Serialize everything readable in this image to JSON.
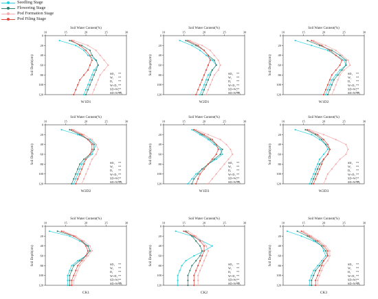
{
  "legend": {
    "items": [
      {
        "label": "Seedling Stage",
        "color": "#1fd0e0",
        "marker": "circle"
      },
      {
        "label": "Flowering Stage",
        "color": "#2e7d6e",
        "marker": "circle"
      },
      {
        "label": "Pod Formation Stage",
        "color": "#f4a9aa",
        "marker": "circle"
      },
      {
        "label": "Pod Filing Stage",
        "color": "#e0483e",
        "marker": "circle"
      }
    ]
  },
  "axis_text": {
    "x_title": "Soil Water Content(%)",
    "y_title": "Soil Depth(cm)",
    "x_ticks": [
      "10",
      "15",
      "20",
      "25",
      "30"
    ],
    "y_ticks": [
      "0",
      "20",
      "40",
      "60",
      "80",
      "100",
      "120"
    ]
  },
  "stats": [
    {
      "label": "SD₁",
      "sig": "**"
    },
    {
      "label": "W₁",
      "sig": "**"
    },
    {
      "label": "D₁",
      "sig": "**"
    },
    {
      "label": "W×D₁",
      "sig": "**"
    },
    {
      "label": "SD×W₁",
      "sig": "**"
    },
    {
      "label": "SD×W×D₁",
      "sig": "**"
    }
  ],
  "chart_data": [
    {
      "type": "line",
      "title": "W1D1",
      "xlabel": "Soil Water Content(%)",
      "ylabel": "Soil Depth(cm)",
      "xlim": [
        10,
        30
      ],
      "ylim": [
        0,
        120
      ],
      "y_reversed": true,
      "x_axis_position": "top",
      "grid": false,
      "y": [
        10,
        20,
        30,
        40,
        50,
        60,
        70,
        80,
        90,
        100,
        110,
        120
      ],
      "series": [
        {
          "name": "Seedling Stage",
          "values": [
            13.5,
            17.5,
            19.5,
            20.5,
            22.5,
            23,
            22,
            21.5,
            21,
            20.5,
            20,
            19.5
          ]
        },
        {
          "name": "Flowering Stage",
          "values": [
            16,
            19,
            21,
            21.5,
            22.5,
            23,
            22.5,
            22,
            21.5,
            21,
            20.5,
            20
          ]
        },
        {
          "name": "Pod Formation Stage",
          "values": [
            17,
            20.5,
            22.5,
            23.5,
            24.5,
            25.5,
            24.5,
            23.5,
            23,
            22.5,
            22,
            21.5
          ]
        },
        {
          "name": "Pod Filing Stage",
          "values": [
            16.5,
            18.5,
            20,
            21,
            21.5,
            21,
            20.5,
            19.5,
            18.5,
            18,
            17.5,
            17
          ]
        }
      ]
    },
    {
      "type": "line",
      "title": "W2D1",
      "xlabel": "Soil Water Content(%)",
      "ylabel": "Soil Depth(cm)",
      "xlim": [
        10,
        30
      ],
      "ylim": [
        0,
        120
      ],
      "y_reversed": true,
      "x_axis_position": "top",
      "grid": false,
      "y": [
        10,
        20,
        30,
        40,
        50,
        60,
        70,
        80,
        90,
        100,
        110,
        120
      ],
      "series": [
        {
          "name": "Seedling Stage",
          "values": [
            14,
            17,
            19,
            20.5,
            22,
            23,
            22,
            21,
            20.5,
            20,
            19.5,
            19
          ]
        },
        {
          "name": "Flowering Stage",
          "values": [
            15.5,
            18,
            20,
            21,
            22.5,
            23,
            22,
            21.5,
            21,
            20.5,
            20,
            19.5
          ]
        },
        {
          "name": "Pod Formation Stage",
          "values": [
            16.5,
            19.5,
            21.5,
            22.5,
            23.5,
            24,
            23.5,
            22.5,
            22,
            21.5,
            21,
            20.5
          ]
        },
        {
          "name": "Pod Filing Stage",
          "values": [
            16,
            18.5,
            20,
            21,
            21.5,
            21,
            20.5,
            20,
            19.5,
            19,
            18.5,
            18
          ]
        }
      ]
    },
    {
      "type": "line",
      "title": "W1D2",
      "xlabel": "Soil Water Content(%)",
      "ylabel": "Soil Depth(cm)",
      "xlim": [
        10,
        30
      ],
      "ylim": [
        0,
        120
      ],
      "y_reversed": true,
      "x_axis_position": "top",
      "grid": false,
      "y": [
        10,
        20,
        30,
        40,
        50,
        60,
        70,
        80,
        90,
        100,
        110,
        120
      ],
      "series": [
        {
          "name": "Seedling Stage",
          "values": [
            13,
            17,
            21,
            23,
            25,
            25.5,
            24,
            23,
            22,
            21.5,
            21,
            20.5
          ]
        },
        {
          "name": "Flowering Stage",
          "values": [
            16,
            19,
            22,
            24,
            25.5,
            25.5,
            24.5,
            23.5,
            22.5,
            22,
            21.5,
            21
          ]
        },
        {
          "name": "Pod Formation Stage",
          "values": [
            17.5,
            20.5,
            23,
            24.5,
            26,
            26.5,
            25,
            24,
            23.5,
            23,
            22.5,
            22
          ]
        },
        {
          "name": "Pod Filing Stage",
          "values": [
            17,
            19.5,
            21.5,
            23,
            24.5,
            24,
            23,
            22,
            21.5,
            21,
            20.5,
            20
          ]
        }
      ]
    },
    {
      "type": "line",
      "title": "W2D2",
      "xlabel": "Soil Water Content(%)",
      "ylabel": "Soil Depth(cm)",
      "xlim": [
        10,
        30
      ],
      "ylim": [
        0,
        120
      ],
      "y_reversed": true,
      "x_axis_position": "top",
      "grid": false,
      "y": [
        10,
        20,
        30,
        40,
        50,
        60,
        70,
        80,
        90,
        100,
        110,
        120
      ],
      "series": [
        {
          "name": "Seedling Stage",
          "values": [
            14,
            18,
            21,
            22.5,
            22,
            21.5,
            20,
            19,
            18.5,
            18,
            17.5,
            17
          ]
        },
        {
          "name": "Flowering Stage",
          "values": [
            16,
            18.5,
            20.5,
            22,
            22,
            21,
            19.5,
            18.5,
            18,
            17.5,
            17,
            16.5
          ]
        },
        {
          "name": "Pod Formation Stage",
          "values": [
            17,
            19.5,
            21.5,
            22.5,
            23,
            22.5,
            21.5,
            21,
            20.5,
            20,
            19.5,
            19
          ]
        },
        {
          "name": "Pod Filing Stage",
          "values": [
            16.5,
            19,
            20.5,
            21.5,
            21.5,
            21,
            20,
            19.5,
            19,
            18.5,
            18,
            17.5
          ]
        }
      ]
    },
    {
      "type": "line",
      "title": "W1D3",
      "xlabel": "Soil Water Content(%)",
      "ylabel": "Soil Depth(cm)",
      "xlim": [
        10,
        30
      ],
      "ylim": [
        0,
        120
      ],
      "y_reversed": true,
      "x_axis_position": "top",
      "grid": false,
      "y": [
        10,
        20,
        30,
        40,
        50,
        60,
        70,
        80,
        90,
        100,
        110,
        120
      ],
      "series": [
        {
          "name": "Seedling Stage",
          "values": [
            17,
            19,
            21,
            22.5,
            24,
            24.5,
            23,
            21,
            19.5,
            18,
            17,
            16
          ]
        },
        {
          "name": "Flowering Stage",
          "values": [
            17.5,
            19.5,
            21.5,
            23,
            24.5,
            24,
            22.5,
            21,
            19.5,
            18.5,
            17.5,
            17
          ]
        },
        {
          "name": "Pod Formation Stage",
          "values": [
            18,
            21,
            24,
            25.5,
            26.5,
            27,
            26,
            25,
            24,
            23,
            22,
            21
          ]
        },
        {
          "name": "Pod Filing Stage",
          "values": [
            17.5,
            20,
            22,
            23,
            23.5,
            23,
            22,
            21,
            20,
            19,
            18.5,
            18
          ]
        }
      ]
    },
    {
      "type": "line",
      "title": "W2D3",
      "xlabel": "Soil Water Content(%)",
      "ylabel": "Soil Depth(cm)",
      "xlim": [
        10,
        30
      ],
      "ylim": [
        0,
        120
      ],
      "y_reversed": true,
      "x_axis_position": "top",
      "grid": false,
      "y": [
        10,
        20,
        30,
        40,
        50,
        60,
        70,
        80,
        90,
        100,
        110,
        120
      ],
      "series": [
        {
          "name": "Seedling Stage",
          "values": [
            13,
            17,
            19,
            20.5,
            21,
            20,
            19,
            18.5,
            18,
            17.5,
            17,
            16.5
          ]
        },
        {
          "name": "Flowering Stage",
          "values": [
            15.5,
            18,
            19.5,
            20.5,
            21.5,
            21,
            20,
            19,
            18.5,
            18,
            17.5,
            17
          ]
        },
        {
          "name": "Pod Formation Stage",
          "values": [
            16.5,
            20,
            23,
            25.5,
            26,
            25.5,
            24,
            23,
            22,
            21,
            20.5,
            20
          ]
        },
        {
          "name": "Pod Filing Stage",
          "values": [
            16,
            18.5,
            20,
            21,
            21.5,
            21,
            20,
            19.5,
            19,
            18.5,
            18,
            17.5
          ]
        }
      ]
    },
    {
      "type": "line",
      "title": "CK1",
      "xlabel": "Soil Water Content(%)",
      "ylabel": "Soil Depth(cm)",
      "xlim": [
        10,
        30
      ],
      "ylim": [
        0,
        120
      ],
      "y_reversed": true,
      "x_axis_position": "top",
      "grid": false,
      "y": [
        10,
        20,
        30,
        40,
        50,
        60,
        70,
        80,
        90,
        100,
        110,
        120
      ],
      "series": [
        {
          "name": "Seedling Stage",
          "values": [
            11,
            16,
            18.5,
            20.5,
            21,
            20,
            18,
            16.5,
            16,
            15.5,
            15.5,
            15.5
          ]
        },
        {
          "name": "Flowering Stage",
          "values": [
            13,
            17,
            19,
            20.5,
            21,
            20,
            18.5,
            17,
            16.5,
            16,
            16,
            16
          ]
        },
        {
          "name": "Pod Formation Stage",
          "values": [
            14.5,
            17.5,
            19.5,
            21,
            21.5,
            20.5,
            19.5,
            18.5,
            18,
            17.5,
            17,
            17
          ]
        },
        {
          "name": "Pod Filing Stage",
          "values": [
            14,
            17,
            19,
            20,
            20.5,
            20,
            19,
            18,
            17.5,
            17,
            16.5,
            16.5
          ]
        }
      ]
    },
    {
      "type": "line",
      "title": "CK2",
      "xlabel": "Soil Water Content(%)",
      "ylabel": "Soil Depth(cm)",
      "xlim": [
        10,
        30
      ],
      "ylim": [
        0,
        120
      ],
      "y_reversed": true,
      "x_axis_position": "top",
      "grid": false,
      "y": [
        10,
        20,
        30,
        40,
        50,
        60,
        70,
        80,
        90,
        100,
        110,
        120
      ],
      "series": [
        {
          "name": "Seedling Stage",
          "values": [
            13,
            17,
            19.5,
            22,
            20,
            17.5,
            15.5,
            14.5,
            14,
            13.5,
            13.5,
            13.5
          ]
        },
        {
          "name": "Flowering Stage",
          "values": [
            15.5,
            17,
            18,
            19,
            19.5,
            19,
            18,
            17,
            16.5,
            16,
            16,
            16
          ]
        },
        {
          "name": "Pod Formation Stage",
          "values": [
            16,
            18,
            19.5,
            20.5,
            21,
            20.5,
            20,
            19.5,
            19,
            18.5,
            18.5,
            18.5
          ]
        },
        {
          "name": "Pod Filing Stage",
          "values": [
            15,
            17.5,
            19,
            20,
            20,
            19.5,
            19,
            18.5,
            18,
            17.5,
            17.5,
            17.5
          ]
        }
      ]
    },
    {
      "type": "line",
      "title": "CK3",
      "xlabel": "Soil Water Content(%)",
      "ylabel": "Soil Depth(cm)",
      "xlim": [
        10,
        30
      ],
      "ylim": [
        0,
        120
      ],
      "y_reversed": true,
      "x_axis_position": "top",
      "grid": false,
      "y": [
        10,
        20,
        30,
        40,
        50,
        60,
        70,
        80,
        90,
        100,
        110,
        120
      ],
      "series": [
        {
          "name": "Seedling Stage",
          "values": [
            11,
            14.5,
            17.5,
            19.5,
            20,
            20.5,
            19.5,
            18.5,
            17.5,
            17,
            16.5,
            16.5
          ]
        },
        {
          "name": "Flowering Stage",
          "values": [
            13.5,
            16,
            18,
            19.5,
            20.5,
            21,
            20,
            19,
            18,
            17.5,
            17,
            17
          ]
        },
        {
          "name": "Pod Formation Stage",
          "values": [
            15,
            17,
            19,
            20.5,
            21.5,
            21.5,
            21,
            20,
            19.5,
            19,
            18.5,
            18.5
          ]
        },
        {
          "name": "Pod Filing Stage",
          "values": [
            14.5,
            16.5,
            18.5,
            20,
            21,
            21,
            20,
            19.5,
            19,
            18.5,
            18,
            18
          ]
        }
      ]
    }
  ]
}
